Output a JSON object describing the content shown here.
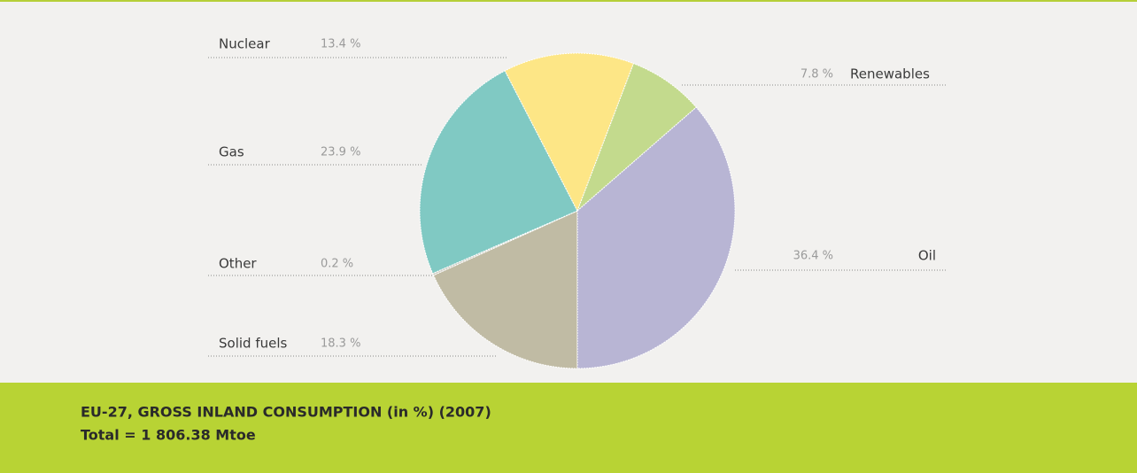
{
  "chart_data": {
    "type": "pie",
    "title": "EU-27, GROSS INLAND CONSUMPTION (in %) (2007)",
    "subtitle": "Total = 1 806.38 Mtoe",
    "categories": [
      "Solid fuels",
      "Other",
      "Gas",
      "Nuclear",
      "Renewables",
      "Oil"
    ],
    "values": [
      18.3,
      0.2,
      23.9,
      13.4,
      7.8,
      36.4
    ],
    "value_labels": [
      "18.3 %",
      "0.2 %",
      "23.9 %",
      "13.4 %",
      "7.8 %",
      "36.4 %"
    ],
    "colors": [
      "#c0bba4",
      "#cfcdc4",
      "#80c9c3",
      "#fde686",
      "#c3da8d",
      "#b8b5d4"
    ]
  }
}
